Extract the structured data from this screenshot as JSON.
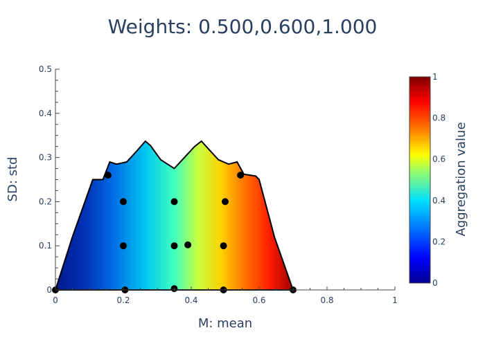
{
  "chart_data": {
    "type": "scatter",
    "title": "Weights: 0.500,0.600,1.000",
    "xlabel": "M: mean",
    "ylabel": "SD: std",
    "colorbar_label": "Aggregation value",
    "xlim": [
      0,
      1
    ],
    "ylim": [
      0,
      0.5
    ],
    "colorbar_range": [
      0,
      1
    ],
    "x_ticks": [
      "0",
      "0.2",
      "0.4",
      "0.6",
      "0.8",
      "1"
    ],
    "y_ticks": [
      "0",
      "0.1",
      "0.2",
      "0.3",
      "0.4",
      "0.5"
    ],
    "colorbar_ticks": [
      "0",
      "0.2",
      "0.4",
      "0.6",
      "0.8",
      "1"
    ],
    "colorscale": "jet",
    "grid": false,
    "heatmap_region": {
      "description": "filled color region of aggregation value bounded by outline",
      "boundary": [
        [
          0.0,
          0.0
        ],
        [
          0.05,
          0.12
        ],
        [
          0.11,
          0.25
        ],
        [
          0.14,
          0.25
        ],
        [
          0.16,
          0.29
        ],
        [
          0.18,
          0.285
        ],
        [
          0.21,
          0.29
        ],
        [
          0.24,
          0.315
        ],
        [
          0.265,
          0.337
        ],
        [
          0.28,
          0.327
        ],
        [
          0.31,
          0.295
        ],
        [
          0.35,
          0.275
        ],
        [
          0.38,
          0.3
        ],
        [
          0.41,
          0.325
        ],
        [
          0.43,
          0.337
        ],
        [
          0.45,
          0.32
        ],
        [
          0.48,
          0.295
        ],
        [
          0.51,
          0.285
        ],
        [
          0.535,
          0.29
        ],
        [
          0.555,
          0.262
        ],
        [
          0.59,
          0.258
        ],
        [
          0.6,
          0.25
        ],
        [
          0.645,
          0.12
        ],
        [
          0.7,
          0.0
        ]
      ],
      "color_left": "#0a1f8f",
      "color_right": "#b00000"
    },
    "series": [
      {
        "x": [
          0.0,
          0.205,
          0.35,
          0.495,
          0.7,
          0.2,
          0.35,
          0.39,
          0.495,
          0.2,
          0.35,
          0.5,
          0.155,
          0.545
        ],
        "y": [
          0.0,
          0.0,
          0.003,
          0.0,
          0.0,
          0.1,
          0.1,
          0.102,
          0.1,
          0.2,
          0.2,
          0.2,
          0.26,
          0.26
        ]
      }
    ]
  }
}
